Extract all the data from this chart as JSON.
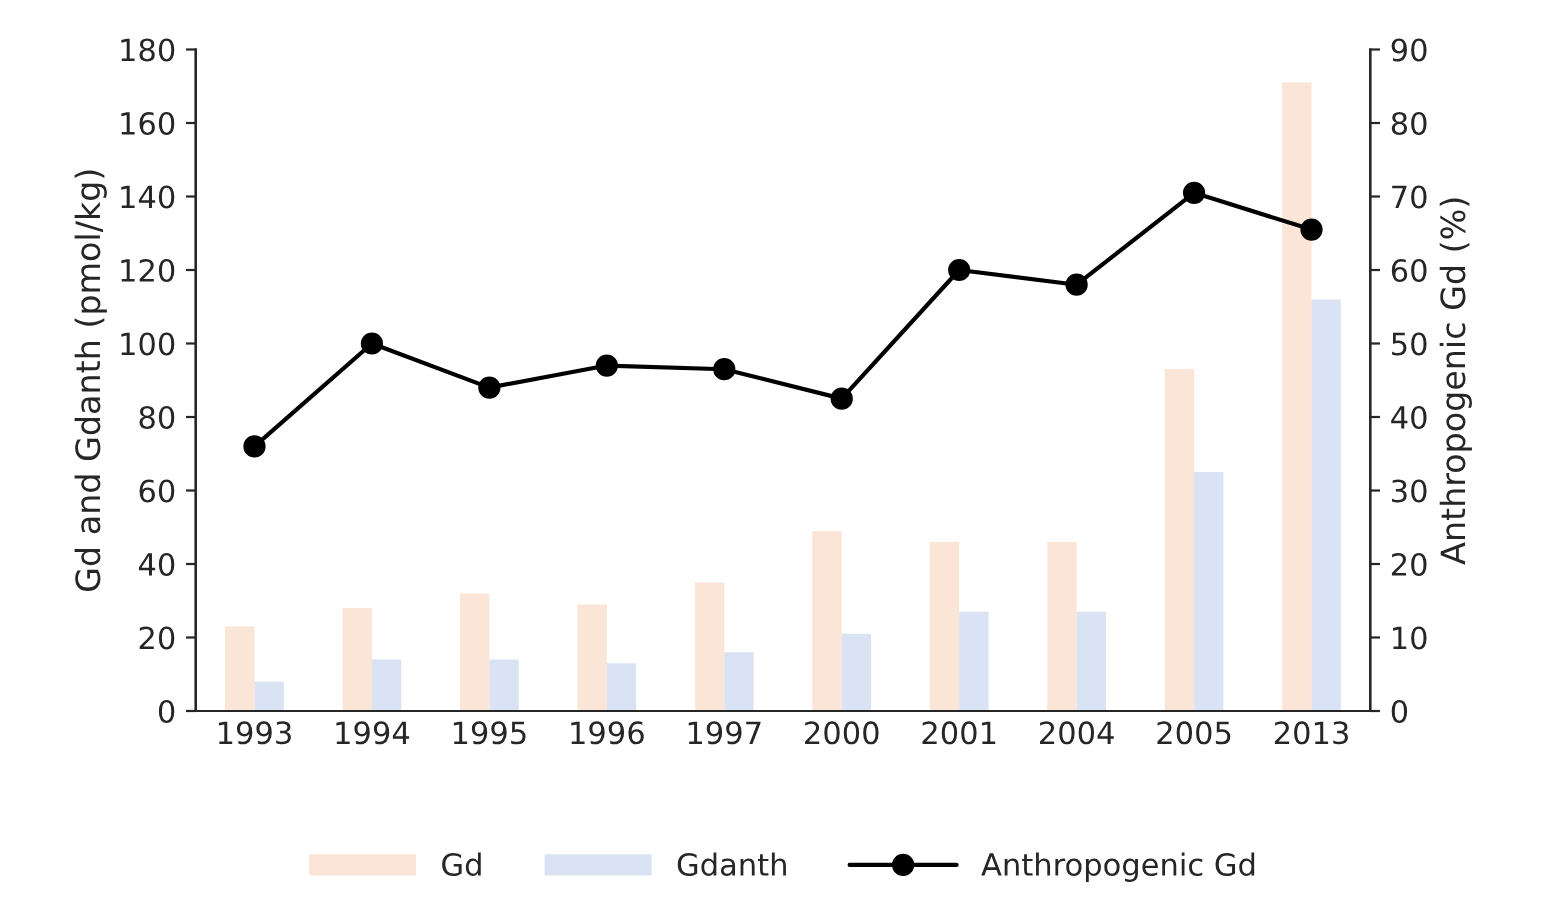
{
  "chart_data": {
    "type": "bar",
    "ylabel": "Gd and Gdanth (pmol/kg)",
    "y2label": "Anthropogenic Gd (%)",
    "categories": [
      "1993",
      "1994",
      "1995",
      "1996",
      "1997",
      "2000",
      "2001",
      "2004",
      "2005",
      "2013"
    ],
    "series": [
      {
        "name": "Gd",
        "color": "#fbe5d6",
        "values": [
          23,
          28,
          32,
          29,
          35,
          49,
          46,
          46,
          93,
          171
        ]
      },
      {
        "name": "Gdanth",
        "color": "#dae3f3",
        "values": [
          8,
          14,
          14,
          13,
          16,
          21,
          27,
          27,
          65,
          112
        ]
      },
      {
        "name": "Anthropogenic Gd",
        "type": "line",
        "axis": "y2",
        "color": "#000000",
        "marker": "circle",
        "values": [
          36,
          50,
          44,
          47,
          46.5,
          42.5,
          60,
          58,
          70.5,
          65.5
        ]
      }
    ],
    "ylim": [
      0,
      180
    ],
    "yticks": [
      0,
      20,
      40,
      60,
      80,
      100,
      120,
      140,
      160,
      180
    ],
    "y2lim": [
      0,
      90
    ],
    "y2ticks": [
      0,
      10,
      20,
      30,
      40,
      50,
      60,
      70,
      80,
      90
    ],
    "grid": false,
    "legend": "bottom"
  }
}
